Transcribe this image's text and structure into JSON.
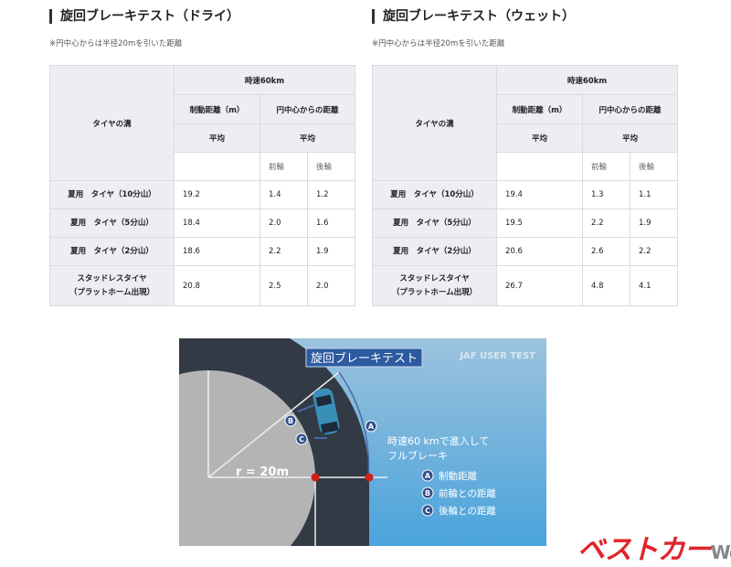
{
  "tables": [
    {
      "title": "旋回ブレーキテスト（ドライ）",
      "note": "※円中心からは半径20mを引いた距離",
      "header": {
        "tire": "タイヤの溝",
        "speed": "時速60km",
        "braking": "制動距離（m）",
        "center": "円中心からの距離",
        "avg1": "平均",
        "avg2": "平均",
        "front": "前輪",
        "rear": "後輪"
      },
      "rows": [
        [
          "夏用　タイヤ（10分山）",
          "19.2",
          "1.4",
          "1.2"
        ],
        [
          "夏用　タイヤ（5分山）",
          "18.4",
          "2.0",
          "1.6"
        ],
        [
          "夏用　タイヤ（2分山）",
          "18.6",
          "2.2",
          "1.9"
        ],
        [
          "スタッドレスタイヤ\n（プラットホーム出現）",
          "20.8",
          "2.5",
          "2.0"
        ]
      ]
    },
    {
      "title": "旋回ブレーキテスト（ウェット）",
      "note": "※円中心からは半径20mを引いた距離",
      "header": {
        "tire": "タイヤの溝",
        "speed": "時速60km",
        "braking": "制動距離（m）",
        "center": "円中心からの距離",
        "avg1": "平均",
        "avg2": "平均",
        "front": "前輪",
        "rear": "後輪"
      },
      "rows": [
        [
          "夏用　タイヤ（10分山）",
          "19.4",
          "1.3",
          "1.1"
        ],
        [
          "夏用　タイヤ（5分山）",
          "19.5",
          "2.2",
          "1.9"
        ],
        [
          "夏用　タイヤ（2分山）",
          "20.6",
          "2.6",
          "2.2"
        ],
        [
          "スタッドレスタイヤ\n（プラットホーム出現）",
          "26.7",
          "4.8",
          "4.1"
        ]
      ]
    }
  ],
  "diagram": {
    "title": "旋回ブレーキテスト",
    "brand": "JAF USER TEST",
    "radius": "r = 20m",
    "desc1": "時速60 kmで進入して",
    "desc2": "フルブレーキ",
    "legend": [
      {
        "k": "A",
        "t": "制動距離"
      },
      {
        "k": "B",
        "t": "前輪との距離"
      },
      {
        "k": "C",
        "t": "後輪との距離"
      }
    ]
  },
  "watermark": {
    "main": "ベストカー",
    "sub": "Web"
  }
}
